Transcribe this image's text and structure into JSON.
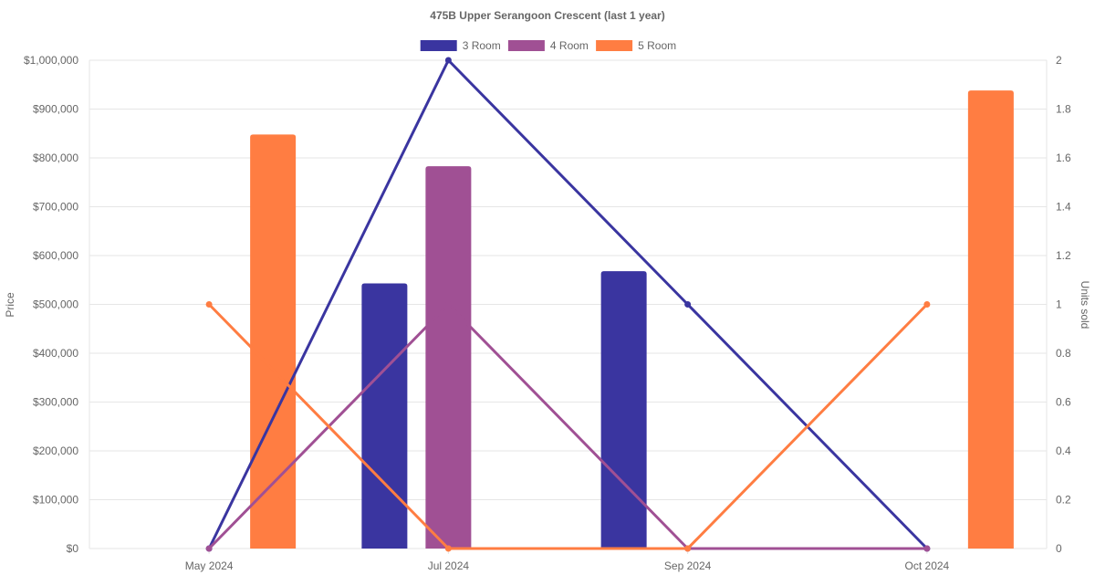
{
  "chart_data": {
    "type": "bar",
    "title": "475B Upper Serangoon Crescent (last 1 year)",
    "categories": [
      "May 2024",
      "Jul 2024",
      "Sep 2024",
      "Oct 2024"
    ],
    "y_left": {
      "label": "Price",
      "range": [
        0,
        1000000
      ],
      "ticks": [
        "$0",
        "$100,000",
        "$200,000",
        "$300,000",
        "$400,000",
        "$500,000",
        "$600,000",
        "$700,000",
        "$800,000",
        "$900,000",
        "$1,000,000"
      ]
    },
    "y_right": {
      "label": "Units sold",
      "range": [
        0,
        2
      ],
      "ticks": [
        "0",
        "0.2",
        "0.4",
        "0.6",
        "0.8",
        "1",
        "1.2",
        "1.4",
        "1.6",
        "1.8",
        "2"
      ]
    },
    "grid": true,
    "legend_position": "top",
    "series": [
      {
        "name": "3 Room",
        "color": "#3a35a0",
        "price": [
          null,
          543000,
          568000,
          null
        ],
        "units_sold": [
          0,
          2,
          1,
          0
        ]
      },
      {
        "name": "4 Room",
        "color": "#a05094",
        "price": [
          null,
          783000,
          null,
          null
        ],
        "units_sold": [
          0,
          1,
          0,
          0
        ]
      },
      {
        "name": "5 Room",
        "color": "#ff7d42",
        "price": [
          848000,
          null,
          null,
          938000
        ],
        "units_sold": [
          1,
          0,
          0,
          1
        ]
      }
    ]
  }
}
